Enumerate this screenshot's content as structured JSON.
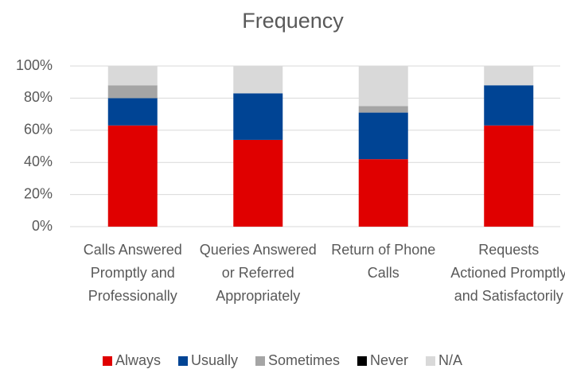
{
  "chart_data": {
    "type": "stacked_bar",
    "title": "Frequency",
    "categories": [
      "Calls Answered Promptly and Professionally",
      "Queries Answered or Referred Appropriately",
      "Return of Phone Calls",
      "Requests Actioned Promptly and Satisfactorily"
    ],
    "series": [
      {
        "name": "Always",
        "color": "#e00000",
        "values": [
          63,
          54,
          42,
          63
        ]
      },
      {
        "name": "Usually",
        "color": "#004494",
        "values": [
          17,
          29,
          29,
          25
        ]
      },
      {
        "name": "Sometimes",
        "color": "#a5a5a5",
        "values": [
          8,
          0,
          4,
          0
        ]
      },
      {
        "name": "Never",
        "color": "#000000",
        "values": [
          0,
          0,
          0,
          0
        ]
      },
      {
        "name": "N/A",
        "color": "#d9d9d9",
        "values": [
          12,
          17,
          25,
          12
        ]
      }
    ],
    "ylim": [
      0,
      100
    ],
    "yticks": [
      {
        "value": 0,
        "label": "0%"
      },
      {
        "value": 20,
        "label": "20%"
      },
      {
        "value": 40,
        "label": "40%"
      },
      {
        "value": 60,
        "label": "60%"
      },
      {
        "value": 80,
        "label": "80%"
      },
      {
        "value": 100,
        "label": "100%"
      }
    ],
    "grid": true,
    "legend": "bottom"
  }
}
